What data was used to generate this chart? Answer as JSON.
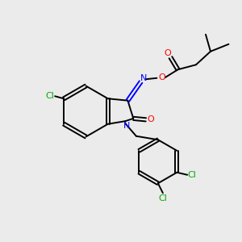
{
  "bg_color": "#ebebeb",
  "bond_color": "#000000",
  "N_color": "#0000ff",
  "O_color": "#ff0000",
  "Cl_color": "#00aa00",
  "line_width": 1.4,
  "figsize": [
    3.0,
    3.0
  ],
  "dpi": 100,
  "xlim": [
    0,
    10
  ],
  "ylim": [
    0,
    10
  ]
}
